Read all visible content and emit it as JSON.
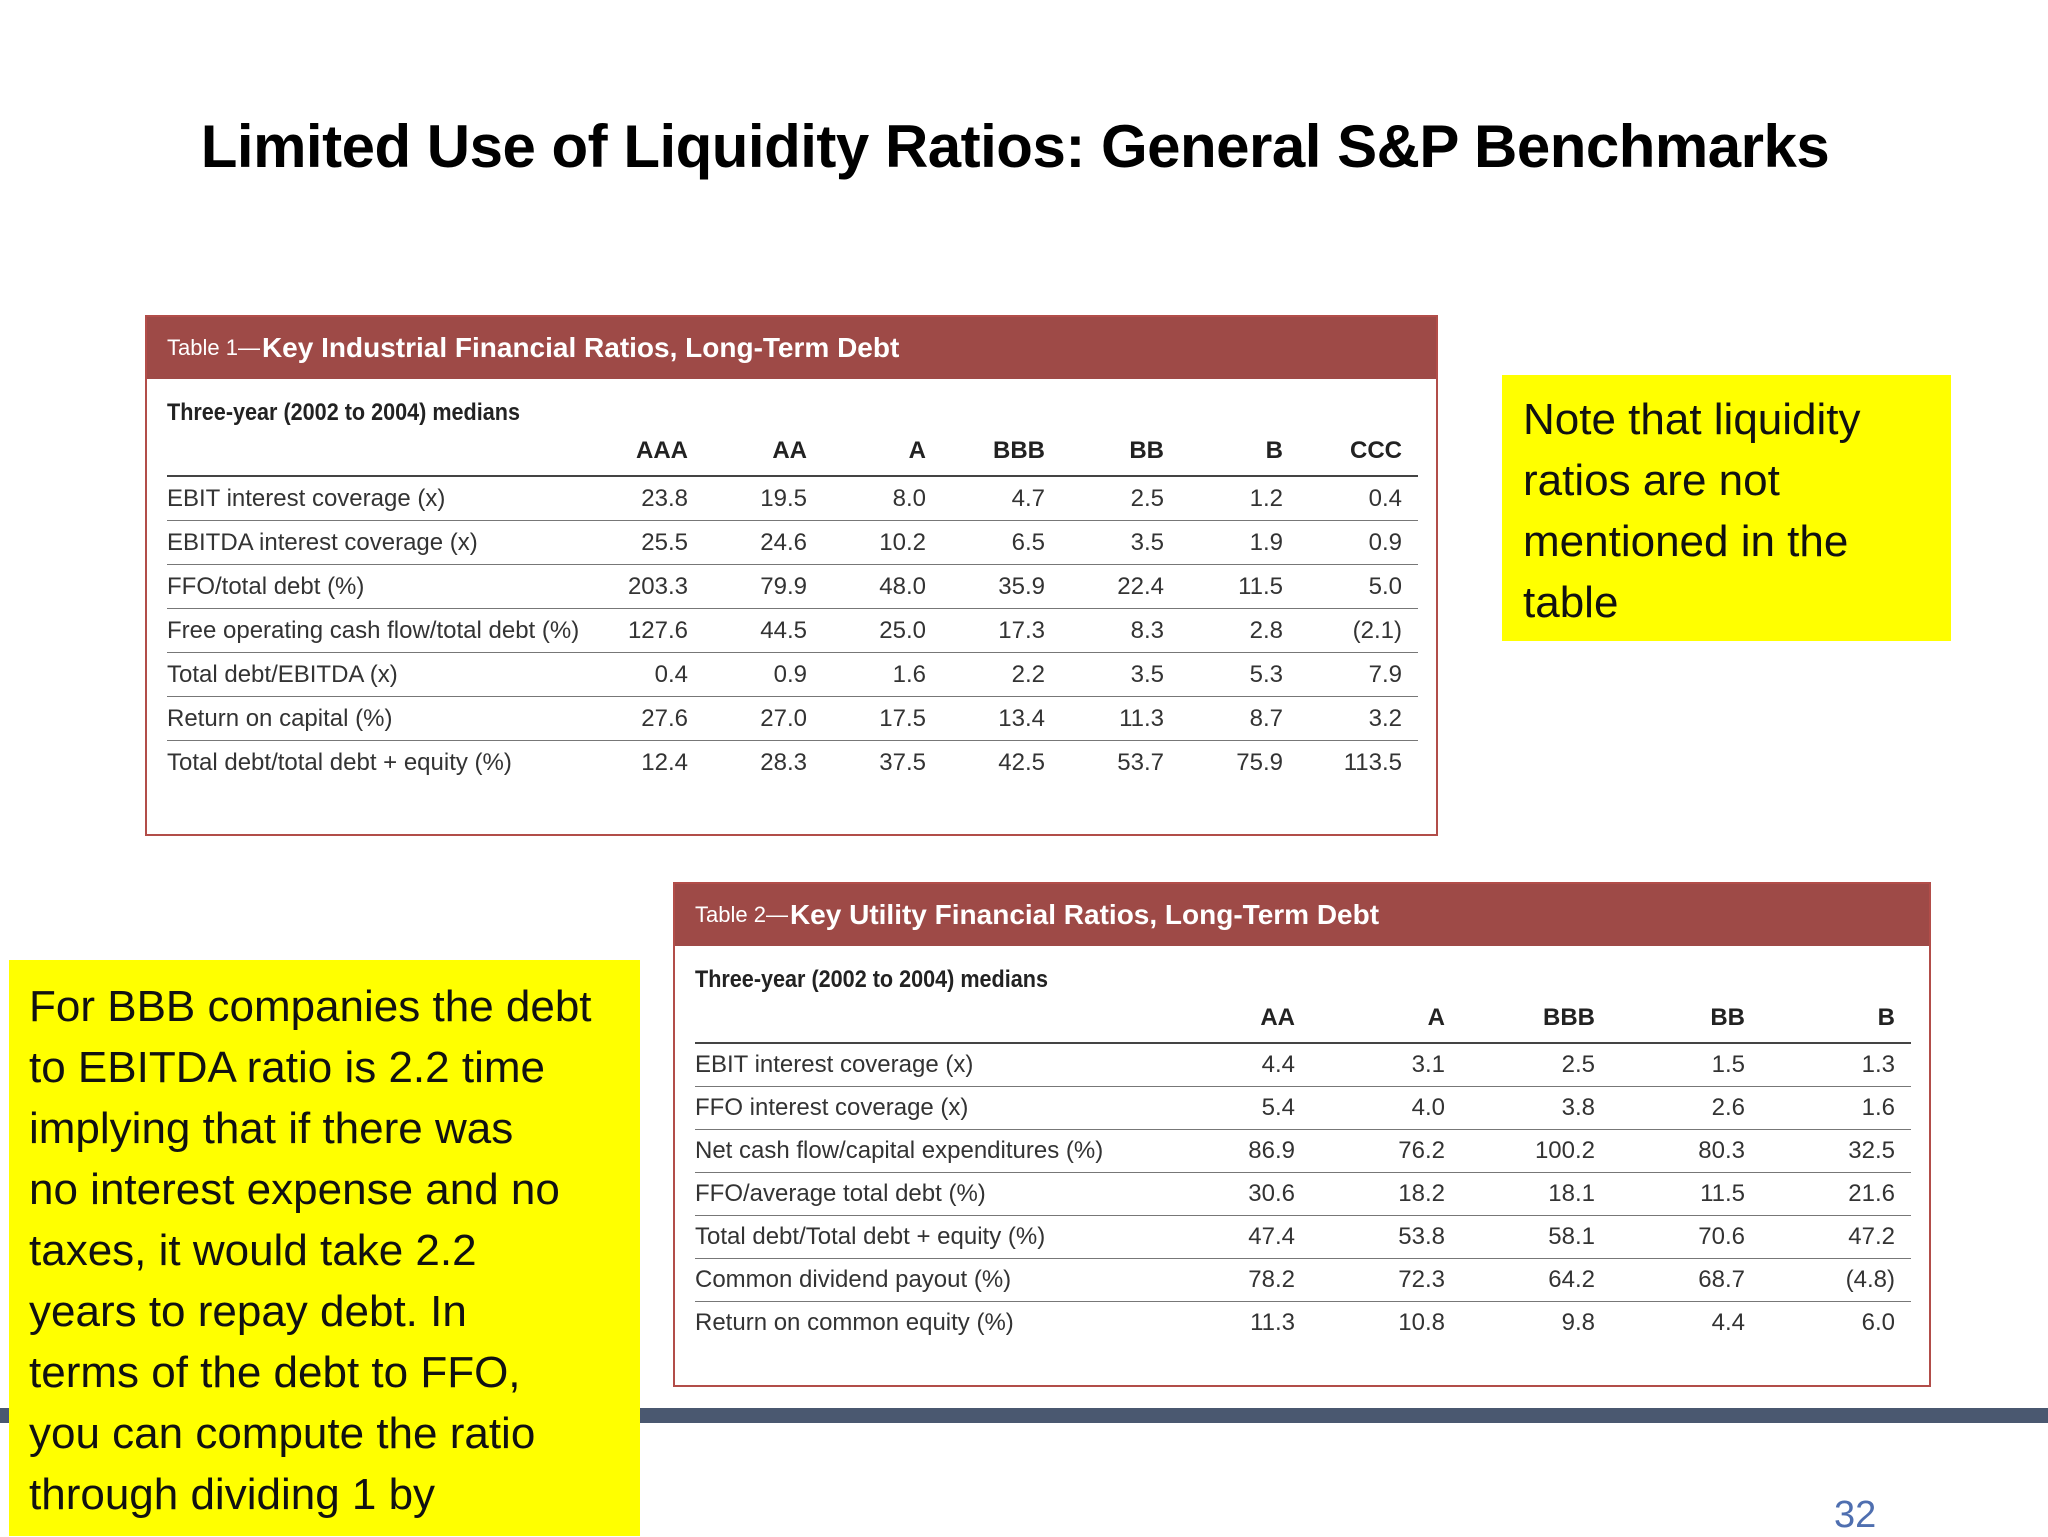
{
  "title": "Limited Use of Liquidity Ratios: General S&P Benchmarks",
  "table1": {
    "label": "Table 1—",
    "title": "Key Industrial Financial Ratios, Long-Term Debt",
    "subtitle": "Three-year (2002 to 2004) medians",
    "columns": [
      "AAA",
      "AA",
      "A",
      "BBB",
      "BB",
      "B",
      "CCC"
    ],
    "rows": [
      [
        "EBIT interest coverage (x)",
        "23.8",
        "19.5",
        "8.0",
        "4.7",
        "2.5",
        "1.2",
        "0.4"
      ],
      [
        "EBITDA interest coverage (x)",
        "25.5",
        "24.6",
        "10.2",
        "6.5",
        "3.5",
        "1.9",
        "0.9"
      ],
      [
        "FFO/total debt (%)",
        "203.3",
        "79.9",
        "48.0",
        "35.9",
        "22.4",
        "11.5",
        "5.0"
      ],
      [
        "Free operating cash flow/total debt (%)",
        "127.6",
        "44.5",
        "25.0",
        "17.3",
        "8.3",
        "2.8",
        "(2.1)"
      ],
      [
        "Total debt/EBITDA (x)",
        "0.4",
        "0.9",
        "1.6",
        "2.2",
        "3.5",
        "5.3",
        "7.9"
      ],
      [
        "Return on capital (%)",
        "27.6",
        "27.0",
        "17.5",
        "13.4",
        "11.3",
        "8.7",
        "3.2"
      ],
      [
        "Total debt/total debt + equity (%)",
        "12.4",
        "28.3",
        "37.5",
        "42.5",
        "53.7",
        "75.9",
        "113.5"
      ]
    ]
  },
  "table2": {
    "label": "Table 2—",
    "title": "Key Utility Financial Ratios, Long-Term Debt",
    "subtitle": "Three-year (2002 to 2004) medians",
    "columns": [
      "AA",
      "A",
      "BBB",
      "BB",
      "B"
    ],
    "rows": [
      [
        "EBIT interest coverage (x)",
        "4.4",
        "3.1",
        "2.5",
        "1.5",
        "1.3"
      ],
      [
        "FFO interest coverage (x)",
        "5.4",
        "4.0",
        "3.8",
        "2.6",
        "1.6"
      ],
      [
        "Net cash flow/capital expenditures (%)",
        "86.9",
        "76.2",
        "100.2",
        "80.3",
        "32.5"
      ],
      [
        "FFO/average total debt (%)",
        "30.6",
        "18.2",
        "18.1",
        "11.5",
        "21.6"
      ],
      [
        "Total debt/Total debt + equity (%)",
        "47.4",
        "53.8",
        "58.1",
        "70.6",
        "47.2"
      ],
      [
        "Common dividend payout (%)",
        "78.2",
        "72.3",
        "64.2",
        "68.7",
        "(4.8)"
      ],
      [
        "Return on common equity (%)",
        "11.3",
        "10.8",
        "9.8",
        "4.4",
        "6.0"
      ]
    ]
  },
  "note1": {
    "lines": [
      "Note that liquidity",
      "ratios are not",
      "mentioned in the",
      "table"
    ]
  },
  "note2": {
    "lines": [
      "For BBB companies the debt",
      "to EBITDA ratio is 2.2 time",
      "implying that if there was",
      "no interest expense and no",
      "taxes, it would take 2.2",
      "years to repay debt. In",
      "terms of the debt to FFO,",
      "you can compute the ratio",
      "through dividing 1 by"
    ]
  },
  "page_number": "32"
}
